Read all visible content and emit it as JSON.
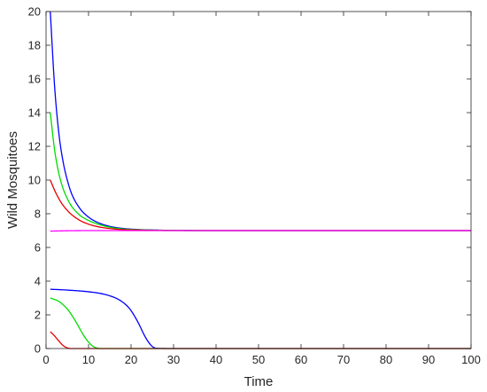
{
  "chart_data": {
    "type": "line",
    "title": "",
    "xlabel": "Time",
    "ylabel": "Wild Mosquitoes",
    "xlim": [
      0,
      100
    ],
    "ylim": [
      0,
      20
    ],
    "xticks": [
      0,
      10,
      20,
      30,
      40,
      50,
      60,
      70,
      80,
      90,
      100
    ],
    "yticks": [
      0,
      2,
      4,
      6,
      8,
      10,
      12,
      14,
      16,
      18,
      20
    ],
    "grid": false,
    "legend": "none",
    "series": [
      {
        "color": "#0000ff",
        "x": [
          1,
          2,
          3,
          4,
          5,
          6,
          8,
          10,
          12,
          15,
          18,
          22,
          26,
          30,
          40,
          100
        ],
        "y": [
          20,
          15.6,
          12.8,
          11.1,
          10.0,
          9.2,
          8.3,
          7.8,
          7.5,
          7.25,
          7.13,
          7.06,
          7.03,
          7.01,
          7.0,
          7.0
        ]
      },
      {
        "color": "#00dd00",
        "x": [
          1,
          2,
          3,
          4,
          5,
          6,
          8,
          10,
          12,
          15,
          18,
          22,
          26,
          30,
          40,
          100
        ],
        "y": [
          14,
          11.8,
          10.4,
          9.5,
          8.9,
          8.45,
          7.9,
          7.6,
          7.4,
          7.2,
          7.1,
          7.05,
          7.02,
          7.01,
          7.0,
          7.0
        ]
      },
      {
        "color": "#e60000",
        "x": [
          1,
          2,
          3,
          4,
          5,
          6,
          8,
          10,
          12,
          15,
          18,
          22,
          26,
          30,
          40,
          100
        ],
        "y": [
          10,
          9.4,
          8.9,
          8.5,
          8.2,
          7.95,
          7.6,
          7.38,
          7.24,
          7.12,
          7.06,
          7.03,
          7.01,
          7.0,
          7.0,
          7.0
        ]
      },
      {
        "color": "#ff00ff",
        "x": [
          1,
          5,
          10,
          15,
          20,
          25,
          30,
          40,
          100
        ],
        "y": [
          6.97,
          6.99,
          7.0,
          7.0,
          7.0,
          7.0,
          7.0,
          7.0,
          7.0
        ]
      },
      {
        "color": "#0000ff",
        "x": [
          1,
          5,
          10,
          13,
          15,
          17,
          19,
          20,
          21,
          22,
          23,
          24,
          25,
          26,
          30,
          100
        ],
        "y": [
          3.52,
          3.47,
          3.37,
          3.26,
          3.13,
          2.92,
          2.55,
          2.25,
          1.85,
          1.38,
          0.85,
          0.42,
          0.12,
          0.02,
          0,
          0
        ]
      },
      {
        "color": "#00dd00",
        "x": [
          1,
          3,
          5,
          6,
          7,
          8,
          9,
          10,
          11,
          12,
          13,
          15,
          100
        ],
        "y": [
          3.0,
          2.8,
          2.35,
          2.0,
          1.6,
          1.15,
          0.72,
          0.38,
          0.14,
          0.03,
          0,
          0,
          0
        ]
      },
      {
        "color": "#e60000",
        "x": [
          1,
          2,
          3,
          4,
          5,
          6,
          7,
          100
        ],
        "y": [
          1.0,
          0.75,
          0.45,
          0.18,
          0.04,
          0,
          0,
          0
        ]
      }
    ]
  }
}
